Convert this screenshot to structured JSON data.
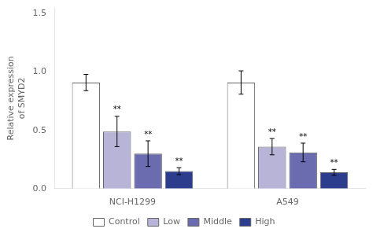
{
  "chart_data": {
    "type": "bar",
    "y_label": "Relative expression\nof SMYD2",
    "categories": [
      "NCI-H1299",
      "A549"
    ],
    "series": [
      {
        "name": "Control",
        "color": "#ffffff",
        "values": [
          0.91,
          0.91
        ],
        "errors": [
          0.07,
          0.1
        ],
        "annotations": [
          null,
          null
        ]
      },
      {
        "name": "Low",
        "color": "#b8b4d8",
        "values": [
          0.49,
          0.36
        ],
        "errors": [
          0.13,
          0.07
        ],
        "annotations": [
          "**",
          "**"
        ]
      },
      {
        "name": "Middle",
        "color": "#6b6baf",
        "values": [
          0.3,
          0.31
        ],
        "errors": [
          0.11,
          0.08
        ],
        "annotations": [
          "**",
          "**"
        ]
      },
      {
        "name": "High",
        "color": "#2d3d8e",
        "values": [
          0.15,
          0.14
        ],
        "errors": [
          0.03,
          0.025
        ],
        "annotations": [
          "**",
          "**"
        ]
      }
    ],
    "ylim": [
      0,
      1.55
    ],
    "yticks": [
      {
        "value": 0,
        "label": "0.0"
      },
      0.5,
      {
        "value": 1,
        "label": "1.0"
      },
      1.5
    ],
    "grid": false,
    "legend": "bottom"
  }
}
